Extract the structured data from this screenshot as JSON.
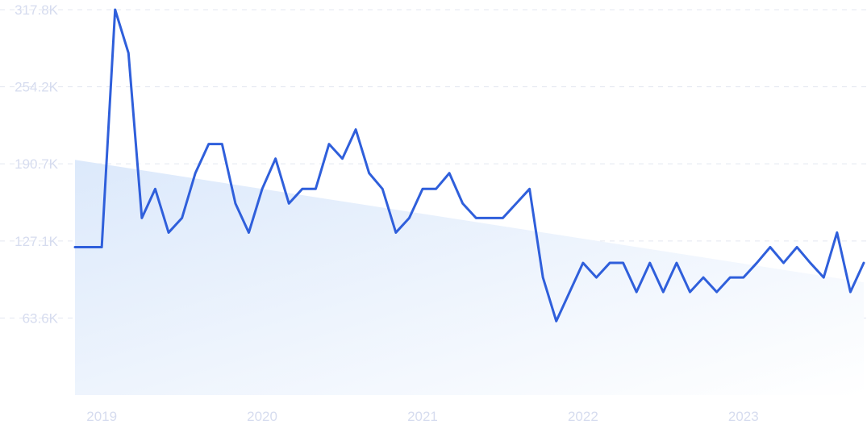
{
  "chart_data": {
    "type": "line",
    "title": "",
    "xlabel": "",
    "ylabel": "",
    "x_tick_labels": [
      "2019",
      "2020",
      "2021",
      "2022",
      "2023"
    ],
    "y_tick_labels": [
      "63.6K",
      "127.1K",
      "190.7K",
      "254.2K",
      "317.8K"
    ],
    "y_tick_values": [
      63600,
      127100,
      190700,
      254200,
      317800
    ],
    "ylim": [
      0,
      317800
    ],
    "x_range": [
      "2018-11",
      "2023-10"
    ],
    "grid": "horizontal dashed",
    "legend": "none",
    "colors": {
      "line": "#2f5fdb",
      "trend_fill": "#dce9fb",
      "tick_text": "#d6dcef",
      "grid": "#e3e7f1"
    },
    "series": [
      {
        "x": [
          "2018-11",
          "2018-12",
          "2019-01",
          "2019-02",
          "2019-03",
          "2019-04",
          "2019-05",
          "2019-06",
          "2019-07",
          "2019-08",
          "2019-09",
          "2019-10",
          "2019-11",
          "2019-12",
          "2020-01",
          "2020-02",
          "2020-03",
          "2020-04",
          "2020-05",
          "2020-06",
          "2020-07",
          "2020-08",
          "2020-09",
          "2020-10",
          "2020-11",
          "2020-12",
          "2021-01",
          "2021-02",
          "2021-03",
          "2021-04",
          "2021-05",
          "2021-06",
          "2021-07",
          "2021-08",
          "2021-09",
          "2021-10",
          "2021-11",
          "2021-12",
          "2022-01",
          "2022-02",
          "2022-03",
          "2022-04",
          "2022-05",
          "2022-06",
          "2022-07",
          "2022-08",
          "2022-09",
          "2022-10",
          "2022-11",
          "2022-12",
          "2023-01",
          "2023-02",
          "2023-03",
          "2023-04",
          "2023-05",
          "2023-06",
          "2023-07",
          "2023-08",
          "2023-09",
          "2023-10"
        ],
        "values": [
          122000,
          122000,
          122000,
          317800,
          282000,
          146000,
          170000,
          134000,
          146000,
          183000,
          207000,
          207000,
          158000,
          134000,
          170000,
          195000,
          158000,
          170000,
          170000,
          207000,
          195000,
          219000,
          183000,
          170000,
          134000,
          146000,
          170000,
          170000,
          183000,
          158000,
          146000,
          146000,
          146000,
          158000,
          170000,
          97000,
          61000,
          85000,
          109000,
          97000,
          109000,
          109000,
          85000,
          109000,
          85000,
          109000,
          85000,
          97000,
          85000,
          97000,
          97000,
          109000,
          122000,
          109000,
          122000,
          109000,
          97000,
          134000,
          85000,
          109000
        ]
      }
    ],
    "trend": {
      "start": [
        "2018-11",
        194000
      ],
      "end": [
        "2023-10",
        93000
      ]
    }
  }
}
